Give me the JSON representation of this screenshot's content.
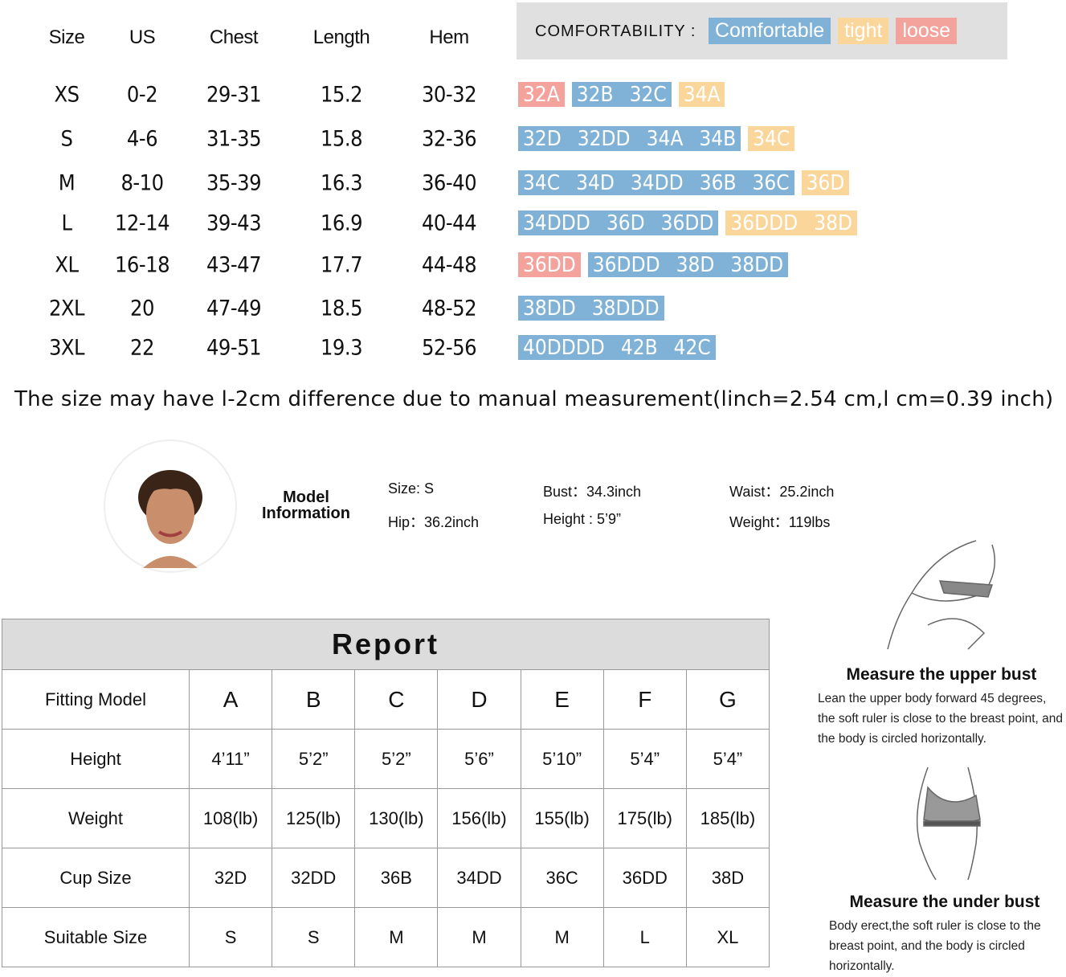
{
  "size_table": {
    "headers": [
      "Size",
      "US",
      "Chest",
      "Length",
      "Hem"
    ],
    "rows": [
      [
        "XS",
        "0-2",
        "29-31",
        "15.2",
        "30-32"
      ],
      [
        "S",
        "4-6",
        "31-35",
        "15.8",
        "32-36"
      ],
      [
        "M",
        "8-10",
        "35-39",
        "16.3",
        "36-40"
      ],
      [
        "L",
        "12-14",
        "39-43",
        "16.9",
        "40-44"
      ],
      [
        "XL",
        "16-18",
        "43-47",
        "17.7",
        "44-48"
      ],
      [
        "2XL",
        "20",
        "47-49",
        "18.5",
        "48-52"
      ],
      [
        "3XL",
        "22",
        "49-51",
        "19.3",
        "52-56"
      ]
    ]
  },
  "comfortability": {
    "label": "COMFORTABILITY :",
    "legend": [
      {
        "text": "Comfortable",
        "color": "#7fb2d6"
      },
      {
        "text": "tight",
        "color": "#fbd69b"
      },
      {
        "text": "loose",
        "color": "#f3a29c"
      }
    ]
  },
  "cups": [
    [
      {
        "color": "#f3a29c",
        "labels": [
          "32A"
        ]
      },
      {
        "color": "#7fb2d6",
        "labels": [
          "32B",
          "32C"
        ]
      },
      {
        "color": "#fbd69b",
        "labels": [
          "34A"
        ]
      }
    ],
    [
      {
        "color": "#7fb2d6",
        "labels": [
          "32D",
          "32DD",
          "34A",
          "34B"
        ]
      },
      {
        "color": "#fbd69b",
        "labels": [
          "34C"
        ]
      }
    ],
    [
      {
        "color": "#7fb2d6",
        "labels": [
          "34C",
          "34D",
          "34DD",
          "36B",
          "36C"
        ]
      },
      {
        "color": "#fbd69b",
        "labels": [
          "36D"
        ]
      }
    ],
    [
      {
        "color": "#7fb2d6",
        "labels": [
          "34DDD",
          "36D",
          "36DD"
        ]
      },
      {
        "color": "#fbd69b",
        "labels": [
          "36DDD",
          "38D"
        ]
      }
    ],
    [
      {
        "color": "#f3a29c",
        "labels": [
          "36DD"
        ]
      },
      {
        "color": "#7fb2d6",
        "labels": [
          "36DDD",
          "38D",
          "38DD"
        ]
      }
    ],
    [
      {
        "color": "#7fb2d6",
        "labels": [
          "38DD",
          "38DDD"
        ]
      }
    ],
    [
      {
        "color": "#7fb2d6",
        "labels": [
          "40DDDD",
          "42B",
          "42C"
        ]
      }
    ]
  ],
  "note": "The size may have l-2cm difference due to manual measurement(linch=2.54 cm,l cm=0.39 inch)",
  "model": {
    "title_line1": "Model",
    "title_line2": "Information",
    "fields": [
      [
        "Size: S",
        "Bust：34.3inch",
        "Waist：25.2inch"
      ],
      [
        "Hip：36.2inch",
        "Height : 5’9”",
        "Weight：119lbs"
      ]
    ]
  },
  "report": {
    "title": "Report",
    "header": [
      "Fitting Model",
      "A",
      "B",
      "C",
      "D",
      "E",
      "F",
      "G"
    ],
    "rows": [
      [
        "Height",
        "4’11”",
        "5’2”",
        "5’2”",
        "5’6”",
        "5’10”",
        "5’4”",
        "5’4”"
      ],
      [
        "Weight",
        "108(lb)",
        "125(lb)",
        "130(lb)",
        "156(lb)",
        "155(lb)",
        "175(lb)",
        "185(lb)"
      ],
      [
        "Cup Size",
        "32D",
        "32DD",
        "36B",
        "34DD",
        "36C",
        "36DD",
        "38D"
      ],
      [
        "Suitable Size",
        "S",
        "S",
        "M",
        "M",
        "M",
        "L",
        "XL"
      ]
    ]
  },
  "measure": [
    {
      "title": "Measure the upper bust",
      "text": "Lean the upper body forward 45 degrees, the soft ruler is close to the breast point, and the body is circled horizontally."
    },
    {
      "title": "Measure the under bust",
      "text": "Body erect,the soft ruler is close to the breast point, and the body is circled horizontally."
    }
  ]
}
